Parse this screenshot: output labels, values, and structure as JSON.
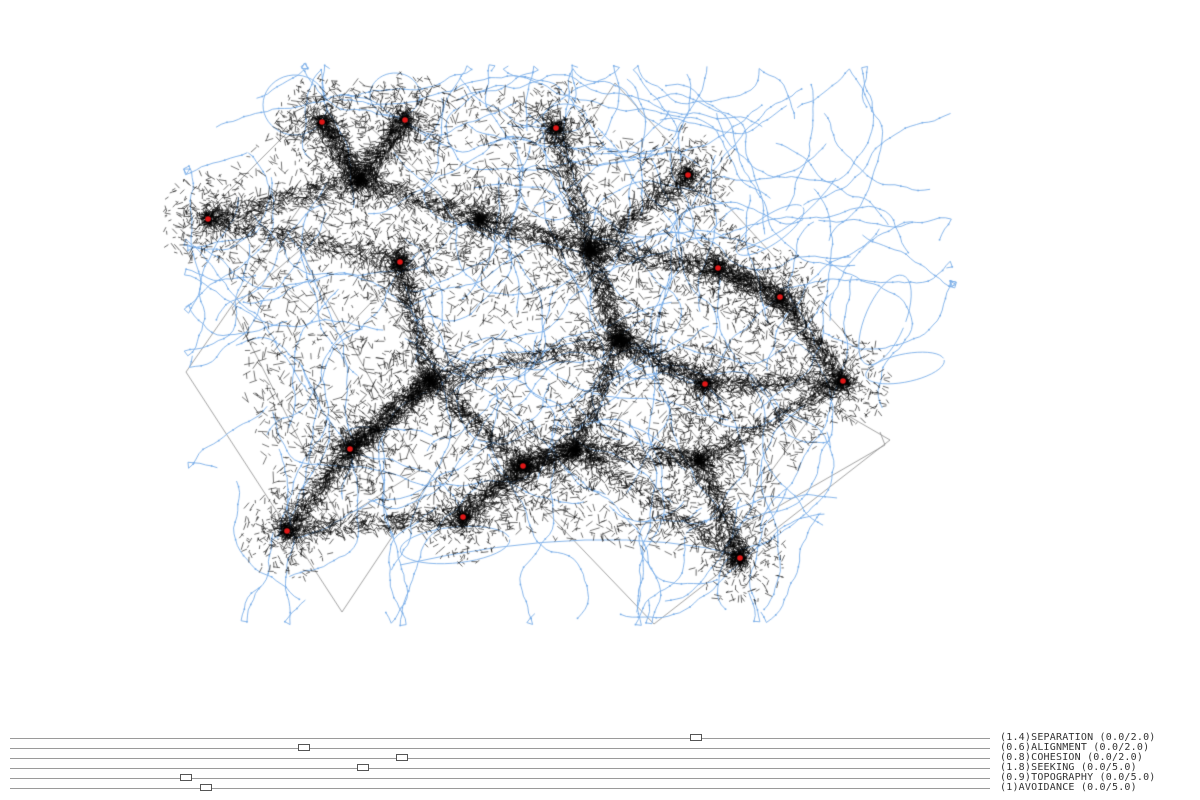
{
  "colors": {
    "background": "#ffffff",
    "trail": "#000000",
    "path": "#7aaee8",
    "agent": "#e01818",
    "boundary": "#8c8c8c",
    "slider_track": "#9a9a9a"
  },
  "sliders": [
    {
      "id": "separation",
      "label": "(1.4)SEPARATION (0.0/2.0)",
      "value": 1.4,
      "min": 0.0,
      "max": 2.0
    },
    {
      "id": "alignment",
      "label": "(0.6)ALIGNMENT (0.0/2.0)",
      "value": 0.6,
      "min": 0.0,
      "max": 2.0
    },
    {
      "id": "cohesion",
      "label": "(0.8)COHESION (0.0/2.0)",
      "value": 0.8,
      "min": 0.0,
      "max": 2.0
    },
    {
      "id": "seeking",
      "label": "(1.8)SEEKING (0.0/5.0)",
      "value": 1.8,
      "min": 0.0,
      "max": 5.0
    },
    {
      "id": "topography",
      "label": "(0.9)TOPOGRAPHY (0.0/5.0)",
      "value": 0.9,
      "min": 0.0,
      "max": 5.0
    },
    {
      "id": "avoidance",
      "label": "(1)AVOIDANCE (0.0/5.0)",
      "value": 1.0,
      "min": 0.0,
      "max": 5.0
    }
  ]
}
